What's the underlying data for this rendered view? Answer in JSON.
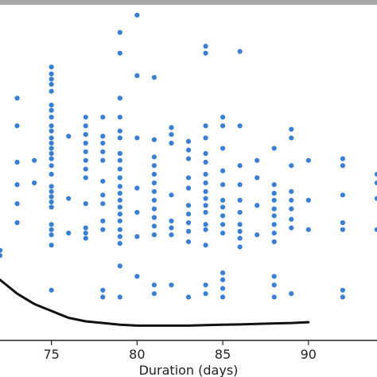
{
  "chart_data": {
    "type": "scatter",
    "title": "",
    "xlabel": "Duration (days)",
    "ylabel": "",
    "xlim": [
      72.0,
      94.0
    ],
    "ylim": [
      0.0,
      20.0
    ],
    "xticks": [
      75,
      80,
      85,
      90
    ],
    "grid": false,
    "colors": {
      "points": "#3a7fd6",
      "curve": "#111111",
      "top_bar": "#a8a8a8",
      "axis": "#222222"
    },
    "series": [
      {
        "type": "scatter",
        "points": [
          {
            "x": 72.0,
            "y": 6.4
          },
          {
            "x": 72.0,
            "y": 6.1
          },
          {
            "x": 73.0,
            "y": 15.2
          },
          {
            "x": 73.0,
            "y": 13.6
          },
          {
            "x": 73.0,
            "y": 11.5
          },
          {
            "x": 73.0,
            "y": 10.2
          },
          {
            "x": 73.0,
            "y": 9.1
          },
          {
            "x": 73.0,
            "y": 8.0
          },
          {
            "x": 74.0,
            "y": 11.6
          },
          {
            "x": 74.0,
            "y": 10.3
          },
          {
            "x": 75.0,
            "y": 17.0
          },
          {
            "x": 75.0,
            "y": 16.6
          },
          {
            "x": 75.0,
            "y": 16.3
          },
          {
            "x": 75.0,
            "y": 16.0
          },
          {
            "x": 75.0,
            "y": 15.6
          },
          {
            "x": 75.0,
            "y": 14.8
          },
          {
            "x": 75.0,
            "y": 14.5
          },
          {
            "x": 75.0,
            "y": 14.1
          },
          {
            "x": 75.0,
            "y": 13.6
          },
          {
            "x": 75.0,
            "y": 13.3
          },
          {
            "x": 75.0,
            "y": 12.9
          },
          {
            "x": 75.0,
            "y": 12.6
          },
          {
            "x": 75.0,
            "y": 12.3
          },
          {
            "x": 75.0,
            "y": 12.0
          },
          {
            "x": 75.0,
            "y": 11.7
          },
          {
            "x": 75.0,
            "y": 11.3
          },
          {
            "x": 75.0,
            "y": 10.8
          },
          {
            "x": 75.0,
            "y": 10.1
          },
          {
            "x": 75.0,
            "y": 9.8
          },
          {
            "x": 75.0,
            "y": 9.5
          },
          {
            "x": 75.0,
            "y": 9.2
          },
          {
            "x": 75.0,
            "y": 8.9
          },
          {
            "x": 75.0,
            "y": 7.9
          },
          {
            "x": 75.0,
            "y": 7.6
          },
          {
            "x": 75.0,
            "y": 7.3
          },
          {
            "x": 75.0,
            "y": 6.7
          },
          {
            "x": 75.0,
            "y": 4.1
          },
          {
            "x": 76.0,
            "y": 13.0
          },
          {
            "x": 76.0,
            "y": 9.4
          },
          {
            "x": 76.0,
            "y": 7.4
          },
          {
            "x": 77.0,
            "y": 14.1
          },
          {
            "x": 77.0,
            "y": 13.6
          },
          {
            "x": 77.0,
            "y": 13.1
          },
          {
            "x": 77.0,
            "y": 12.6
          },
          {
            "x": 77.0,
            "y": 12.1
          },
          {
            "x": 77.0,
            "y": 11.6
          },
          {
            "x": 77.0,
            "y": 11.1
          },
          {
            "x": 77.0,
            "y": 10.6
          },
          {
            "x": 77.0,
            "y": 9.1
          },
          {
            "x": 77.0,
            "y": 7.7
          },
          {
            "x": 77.0,
            "y": 7.4
          },
          {
            "x": 77.0,
            "y": 7.1
          },
          {
            "x": 78.0,
            "y": 14.1
          },
          {
            "x": 78.0,
            "y": 13.0
          },
          {
            "x": 78.0,
            "y": 12.6
          },
          {
            "x": 78.0,
            "y": 12.1
          },
          {
            "x": 78.0,
            "y": 11.6
          },
          {
            "x": 78.0,
            "y": 10.4
          },
          {
            "x": 78.0,
            "y": 9.6
          },
          {
            "x": 78.0,
            "y": 9.1
          },
          {
            "x": 78.0,
            "y": 8.1
          },
          {
            "x": 78.0,
            "y": 7.6
          },
          {
            "x": 78.0,
            "y": 4.1
          },
          {
            "x": 78.0,
            "y": 3.7
          },
          {
            "x": 79.0,
            "y": 19.0
          },
          {
            "x": 79.0,
            "y": 17.8
          },
          {
            "x": 79.0,
            "y": 15.2
          },
          {
            "x": 79.0,
            "y": 14.1
          },
          {
            "x": 79.0,
            "y": 13.3
          },
          {
            "x": 79.0,
            "y": 12.9
          },
          {
            "x": 79.0,
            "y": 12.0
          },
          {
            "x": 79.0,
            "y": 11.6
          },
          {
            "x": 79.0,
            "y": 11.1
          },
          {
            "x": 79.0,
            "y": 10.6
          },
          {
            "x": 79.0,
            "y": 10.1
          },
          {
            "x": 79.0,
            "y": 9.7
          },
          {
            "x": 79.0,
            "y": 9.3
          },
          {
            "x": 79.0,
            "y": 8.9
          },
          {
            "x": 79.0,
            "y": 8.5
          },
          {
            "x": 79.0,
            "y": 8.1
          },
          {
            "x": 79.0,
            "y": 7.6
          },
          {
            "x": 79.0,
            "y": 7.2
          },
          {
            "x": 79.0,
            "y": 6.8
          },
          {
            "x": 79.0,
            "y": 5.5
          },
          {
            "x": 79.0,
            "y": 3.7
          },
          {
            "x": 80.0,
            "y": 20.0
          },
          {
            "x": 80.0,
            "y": 16.5
          },
          {
            "x": 80.0,
            "y": 12.9
          },
          {
            "x": 80.0,
            "y": 10.0
          },
          {
            "x": 80.0,
            "y": 8.6
          },
          {
            "x": 80.0,
            "y": 7.2
          },
          {
            "x": 80.0,
            "y": 4.9
          },
          {
            "x": 81.0,
            "y": 16.4
          },
          {
            "x": 81.0,
            "y": 12.8
          },
          {
            "x": 81.0,
            "y": 11.8
          },
          {
            "x": 81.0,
            "y": 11.3
          },
          {
            "x": 81.0,
            "y": 10.8
          },
          {
            "x": 81.0,
            "y": 10.3
          },
          {
            "x": 81.0,
            "y": 9.8
          },
          {
            "x": 81.0,
            "y": 9.3
          },
          {
            "x": 81.0,
            "y": 8.8
          },
          {
            "x": 81.0,
            "y": 8.3
          },
          {
            "x": 81.0,
            "y": 7.8
          },
          {
            "x": 81.0,
            "y": 7.3
          },
          {
            "x": 81.0,
            "y": 4.4
          },
          {
            "x": 81.0,
            "y": 3.9
          },
          {
            "x": 82.0,
            "y": 13.5
          },
          {
            "x": 82.0,
            "y": 13.1
          },
          {
            "x": 82.0,
            "y": 12.6
          },
          {
            "x": 82.0,
            "y": 9.6
          },
          {
            "x": 82.0,
            "y": 8.1
          },
          {
            "x": 82.0,
            "y": 7.7
          },
          {
            "x": 82.0,
            "y": 7.3
          },
          {
            "x": 82.0,
            "y": 4.4
          },
          {
            "x": 83.0,
            "y": 12.7
          },
          {
            "x": 83.0,
            "y": 12.2
          },
          {
            "x": 83.0,
            "y": 11.7
          },
          {
            "x": 83.0,
            "y": 10.6
          },
          {
            "x": 83.0,
            "y": 10.0
          },
          {
            "x": 83.0,
            "y": 9.0
          },
          {
            "x": 83.0,
            "y": 8.5
          },
          {
            "x": 83.0,
            "y": 8.0
          },
          {
            "x": 83.0,
            "y": 7.5
          },
          {
            "x": 83.0,
            "y": 6.9
          },
          {
            "x": 83.0,
            "y": 3.7
          },
          {
            "x": 84.0,
            "y": 18.2
          },
          {
            "x": 84.0,
            "y": 17.8
          },
          {
            "x": 84.0,
            "y": 13.6
          },
          {
            "x": 84.0,
            "y": 12.9
          },
          {
            "x": 84.0,
            "y": 12.0
          },
          {
            "x": 84.0,
            "y": 11.5
          },
          {
            "x": 84.0,
            "y": 10.8
          },
          {
            "x": 84.0,
            "y": 10.3
          },
          {
            "x": 84.0,
            "y": 9.8
          },
          {
            "x": 84.0,
            "y": 9.4
          },
          {
            "x": 84.0,
            "y": 9.0
          },
          {
            "x": 84.0,
            "y": 8.6
          },
          {
            "x": 84.0,
            "y": 7.9
          },
          {
            "x": 84.0,
            "y": 7.6
          },
          {
            "x": 84.0,
            "y": 6.7
          },
          {
            "x": 84.0,
            "y": 4.4
          },
          {
            "x": 84.0,
            "y": 3.9
          },
          {
            "x": 85.0,
            "y": 14.1
          },
          {
            "x": 85.0,
            "y": 13.6
          },
          {
            "x": 85.0,
            "y": 12.3
          },
          {
            "x": 85.0,
            "y": 11.0
          },
          {
            "x": 85.0,
            "y": 10.2
          },
          {
            "x": 85.0,
            "y": 9.3
          },
          {
            "x": 85.0,
            "y": 8.9
          },
          {
            "x": 85.0,
            "y": 8.4
          },
          {
            "x": 85.0,
            "y": 7.9
          },
          {
            "x": 85.0,
            "y": 7.4
          },
          {
            "x": 85.0,
            "y": 5.1
          },
          {
            "x": 85.0,
            "y": 4.7
          },
          {
            "x": 85.0,
            "y": 4.2
          },
          {
            "x": 85.0,
            "y": 3.7
          },
          {
            "x": 86.0,
            "y": 17.9
          },
          {
            "x": 86.0,
            "y": 13.6
          },
          {
            "x": 86.0,
            "y": 11.3
          },
          {
            "x": 86.0,
            "y": 10.2
          },
          {
            "x": 86.0,
            "y": 9.3
          },
          {
            "x": 86.0,
            "y": 8.6
          },
          {
            "x": 86.0,
            "y": 7.9
          },
          {
            "x": 86.0,
            "y": 7.5
          },
          {
            "x": 86.0,
            "y": 7.1
          },
          {
            "x": 86.0,
            "y": 6.6
          },
          {
            "x": 87.0,
            "y": 11.6
          },
          {
            "x": 87.0,
            "y": 10.6
          },
          {
            "x": 87.0,
            "y": 9.0
          },
          {
            "x": 87.0,
            "y": 7.3
          },
          {
            "x": 88.0,
            "y": 12.3
          },
          {
            "x": 88.0,
            "y": 10.2
          },
          {
            "x": 88.0,
            "y": 9.7
          },
          {
            "x": 88.0,
            "y": 9.3
          },
          {
            "x": 88.0,
            "y": 8.8
          },
          {
            "x": 88.0,
            "y": 8.4
          },
          {
            "x": 88.0,
            "y": 7.9
          },
          {
            "x": 88.0,
            "y": 7.4
          },
          {
            "x": 88.0,
            "y": 6.9
          },
          {
            "x": 88.0,
            "y": 4.9
          },
          {
            "x": 88.0,
            "y": 4.4
          },
          {
            "x": 88.0,
            "y": 3.7
          },
          {
            "x": 89.0,
            "y": 13.4
          },
          {
            "x": 89.0,
            "y": 12.9
          },
          {
            "x": 89.0,
            "y": 11.3
          },
          {
            "x": 89.0,
            "y": 9.8
          },
          {
            "x": 89.0,
            "y": 9.3
          },
          {
            "x": 89.0,
            "y": 8.8
          },
          {
            "x": 89.0,
            "y": 8.2
          },
          {
            "x": 89.0,
            "y": 7.7
          },
          {
            "x": 89.0,
            "y": 3.9
          },
          {
            "x": 90.0,
            "y": 11.6
          },
          {
            "x": 90.0,
            "y": 9.3
          },
          {
            "x": 90.0,
            "y": 7.6
          },
          {
            "x": 92.0,
            "y": 11.7
          },
          {
            "x": 92.0,
            "y": 11.3
          },
          {
            "x": 92.0,
            "y": 9.6
          },
          {
            "x": 92.0,
            "y": 8.0
          },
          {
            "x": 92.0,
            "y": 7.6
          },
          {
            "x": 92.0,
            "y": 4.1
          },
          {
            "x": 92.0,
            "y": 3.7
          },
          {
            "x": 94.0,
            "y": 10.8
          },
          {
            "x": 94.0,
            "y": 10.3
          },
          {
            "x": 94.0,
            "y": 9.4
          },
          {
            "x": 94.0,
            "y": 7.6
          }
        ]
      },
      {
        "type": "line",
        "points": [
          {
            "x": 72.0,
            "y": 4.7
          },
          {
            "x": 72.5,
            "y": 4.3
          },
          {
            "x": 73.0,
            "y": 3.9
          },
          {
            "x": 73.5,
            "y": 3.6
          },
          {
            "x": 74.0,
            "y": 3.3
          },
          {
            "x": 74.5,
            "y": 3.1
          },
          {
            "x": 75.0,
            "y": 2.9
          },
          {
            "x": 75.5,
            "y": 2.7
          },
          {
            "x": 76.0,
            "y": 2.5
          },
          {
            "x": 77.0,
            "y": 2.3
          },
          {
            "x": 78.0,
            "y": 2.2
          },
          {
            "x": 79.0,
            "y": 2.1
          },
          {
            "x": 80.0,
            "y": 2.05
          },
          {
            "x": 81.0,
            "y": 2.05
          },
          {
            "x": 82.0,
            "y": 2.05
          },
          {
            "x": 83.0,
            "y": 2.05
          },
          {
            "x": 84.0,
            "y": 2.08
          },
          {
            "x": 85.0,
            "y": 2.1
          },
          {
            "x": 86.0,
            "y": 2.12
          },
          {
            "x": 87.0,
            "y": 2.15
          },
          {
            "x": 88.0,
            "y": 2.18
          },
          {
            "x": 89.0,
            "y": 2.2
          },
          {
            "x": 90.0,
            "y": 2.25
          }
        ]
      }
    ]
  }
}
